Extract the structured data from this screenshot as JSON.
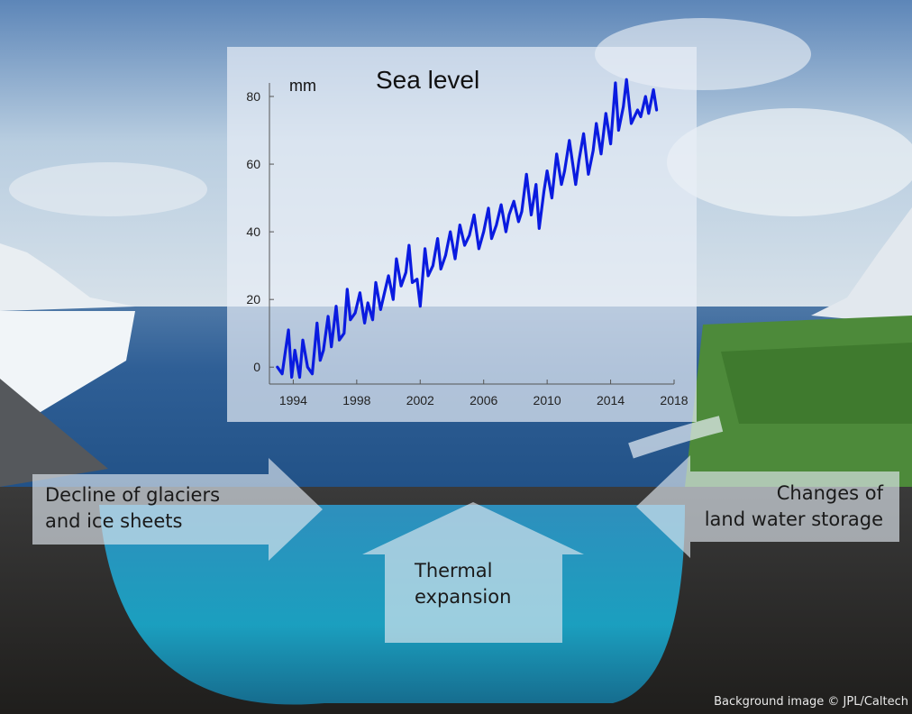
{
  "chart_data": {
    "type": "line",
    "title": "Sea level",
    "ylabel": "mm",
    "xlim": [
      1992.5,
      2018
    ],
    "ylim": [
      -5,
      84
    ],
    "xticks": [
      1994,
      1998,
      2002,
      2006,
      2010,
      2014,
      2018
    ],
    "yticks": [
      0,
      20,
      40,
      60,
      80
    ],
    "grid": false,
    "series": [
      {
        "color": "#0a1be0",
        "x": [
          1993.0,
          1993.3,
          1993.7,
          1993.9,
          1994.1,
          1994.4,
          1994.6,
          1994.9,
          1995.2,
          1995.5,
          1995.7,
          1995.9,
          1996.2,
          1996.4,
          1996.7,
          1996.9,
          1997.2,
          1997.4,
          1997.6,
          1997.9,
          1998.2,
          1998.5,
          1998.7,
          1999.0,
          1999.2,
          1999.5,
          1999.7,
          2000.0,
          2000.3,
          2000.5,
          2000.8,
          2001.1,
          2001.3,
          2001.5,
          2001.8,
          2002.0,
          2002.3,
          2002.5,
          2002.8,
          2003.1,
          2003.3,
          2003.6,
          2003.9,
          2004.2,
          2004.5,
          2004.8,
          2005.1,
          2005.4,
          2005.7,
          2006.0,
          2006.3,
          2006.5,
          2006.8,
          2007.1,
          2007.4,
          2007.6,
          2007.9,
          2008.2,
          2008.4,
          2008.7,
          2009.0,
          2009.3,
          2009.5,
          2009.8,
          2010.0,
          2010.3,
          2010.6,
          2010.9,
          2011.1,
          2011.4,
          2011.8,
          2012.0,
          2012.3,
          2012.6,
          2012.9,
          2013.1,
          2013.4,
          2013.7,
          2014.0,
          2014.3,
          2014.5,
          2014.8,
          2015.0,
          2015.3,
          2015.7,
          2015.9,
          2016.2,
          2016.4,
          2016.7,
          2016.9
        ],
        "y": [
          0,
          -2,
          11,
          -3,
          5,
          -3,
          8,
          0,
          -2,
          13,
          2,
          5,
          15,
          6,
          18,
          8,
          10,
          23,
          14,
          16,
          22,
          13,
          19,
          14,
          25,
          17,
          21,
          27,
          20,
          32,
          24,
          28,
          36,
          25,
          26,
          18,
          35,
          27,
          30,
          38,
          29,
          33,
          40,
          32,
          42,
          36,
          39,
          45,
          35,
          40,
          47,
          38,
          42,
          48,
          40,
          45,
          49,
          43,
          46,
          57,
          45,
          54,
          41,
          52,
          58,
          50,
          63,
          54,
          58,
          67,
          54,
          61,
          69,
          57,
          64,
          72,
          63,
          75,
          66,
          84,
          70,
          77,
          85,
          72,
          76,
          74,
          80,
          75,
          82,
          76
        ]
      }
    ]
  },
  "arrows": {
    "left": {
      "line1": "Decline of glaciers",
      "line2": "and ice sheets"
    },
    "up": {
      "line1": "Thermal",
      "line2": "expansion"
    },
    "right": {
      "line1": "Changes of",
      "line2": "land water storage"
    }
  },
  "credit": "Background image © JPL/Caltech"
}
